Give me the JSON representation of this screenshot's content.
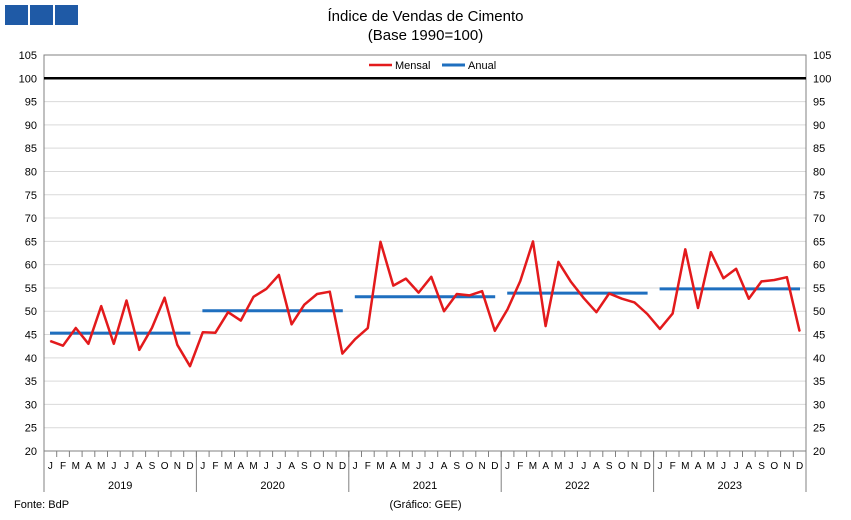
{
  "header": {
    "logo_name": "bdp-logo"
  },
  "chart_data": {
    "type": "line",
    "title": "Índice de Vendas de Cimento",
    "subtitle": "(Base 1990=100)",
    "ylim": [
      20,
      105
    ],
    "ytick_step": 5,
    "grid": true,
    "legend_position": "top-center",
    "reference_line": 100,
    "month_labels": [
      "J",
      "F",
      "M",
      "A",
      "M",
      "J",
      "J",
      "A",
      "S",
      "O",
      "N",
      "D"
    ],
    "years": [
      "2019",
      "2020",
      "2021",
      "2022",
      "2023"
    ],
    "colors": {
      "mensal": "#e31a1c",
      "anual": "#1f6fbf",
      "reference": "#000000"
    },
    "series": [
      {
        "name": "Mensal",
        "values": [
          43.6,
          42.6,
          46.4,
          43.0,
          51.1,
          43.0,
          52.3,
          41.7,
          46.4,
          52.9,
          42.8,
          38.2,
          45.5,
          45.4,
          49.8,
          48.0,
          53.1,
          54.8,
          57.8,
          47.2,
          51.4,
          53.7,
          54.2,
          40.9,
          44.0,
          46.4,
          64.9,
          55.5,
          57.0,
          54.0,
          57.4,
          50.0,
          53.7,
          53.4,
          54.3,
          45.8,
          50.4,
          56.5,
          65.0,
          46.8,
          60.6,
          56.3,
          52.8,
          49.8,
          53.8,
          52.7,
          51.9,
          49.4,
          46.2,
          49.5,
          63.3,
          50.7,
          62.7,
          57.1,
          59.1,
          52.7,
          56.4,
          56.7,
          57.3,
          45.7
        ]
      },
      {
        "name": "Anual",
        "values": [
          45.3,
          50.1,
          53.1,
          53.9,
          54.8
        ]
      }
    ]
  },
  "footer": {
    "source": "Fonte: BdP",
    "credit": "(Gráfico: GEE)"
  }
}
